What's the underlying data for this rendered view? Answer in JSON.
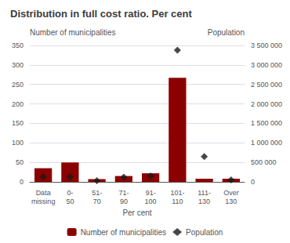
{
  "chart_data": {
    "type": "bar",
    "title": "Distribution in full cost ratio. Per cent",
    "xlabel": "Per cent",
    "ylabel": "Number of municipalities",
    "y2label": "Population",
    "categories": [
      "Data\nmissing",
      "0-\n50",
      "51-\n70",
      "71-\n90",
      "91-\n100",
      "101-\n110",
      "111-\n130",
      "Over\n130"
    ],
    "series": [
      {
        "name": "Number of municipalities",
        "type": "bar",
        "color": "#8B0000",
        "values": [
          35,
          50,
          7,
          15,
          22,
          267,
          8,
          8
        ]
      },
      {
        "name": "Population",
        "type": "scatter",
        "marker": "diamond",
        "color": "#1a1a1a",
        "axis": "y2",
        "values": [
          130000,
          130000,
          30000,
          120000,
          150000,
          3380000,
          650000,
          50000
        ]
      }
    ],
    "ylim": [
      0,
      350
    ],
    "yticks": [
      0,
      50,
      100,
      150,
      200,
      250,
      300,
      350
    ],
    "y2lim": [
      0,
      3500000
    ],
    "y2ticks": [
      0,
      {
        "value": 500000,
        "label": "500 000"
      },
      {
        "value": 1000000,
        "label": "1 000 000"
      },
      {
        "value": 1500000,
        "label": "1 500 000"
      },
      {
        "value": 2000000,
        "label": "2 000 000"
      },
      {
        "value": 2500000,
        "label": "2 500 000"
      },
      {
        "value": 3000000,
        "label": "3 000 000"
      },
      {
        "value": 3500000,
        "label": "3 500 000"
      }
    ],
    "grid": true,
    "legend": "bottom"
  }
}
